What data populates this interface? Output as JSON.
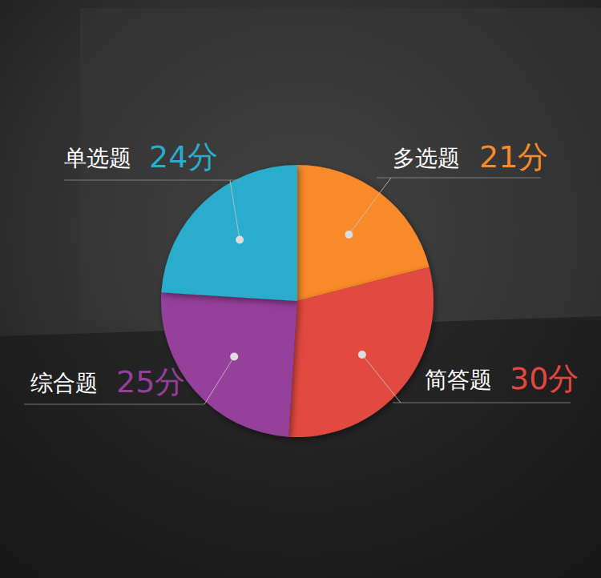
{
  "chart_data": {
    "type": "pie",
    "categories": [
      "多选题",
      "简答题",
      "综合题",
      "单选题"
    ],
    "values": [
      21,
      30,
      25,
      24
    ],
    "value_labels": [
      "21分",
      "30分",
      "25分",
      "24分"
    ],
    "colors": [
      "#f88a2a",
      "#e2483f",
      "#953f9b",
      "#2aaccc"
    ],
    "data_labels": true
  }
}
